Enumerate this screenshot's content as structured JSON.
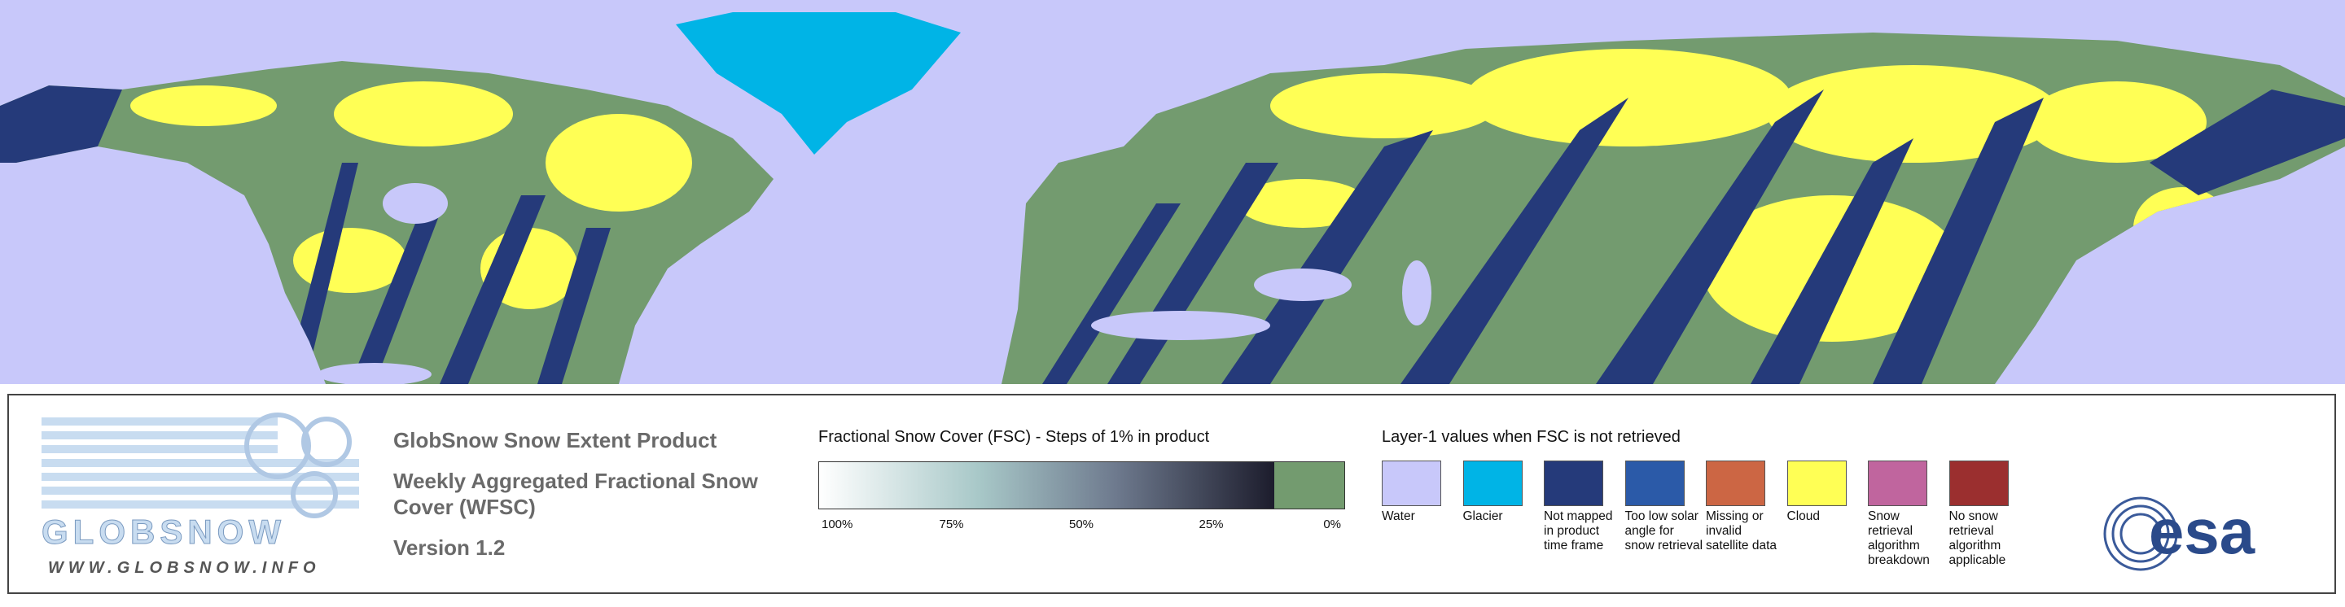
{
  "logo": {
    "name": "GLOBSNOW",
    "url": "WWW.GLOBSNOW.INFO"
  },
  "header": {
    "product": "GlobSnow Snow Extent Product",
    "subtitle_line1": "Weekly Aggregated Fractional Snow",
    "subtitle_line2": "Cover (WFSC)",
    "version": "Version 1.2"
  },
  "fsc_legend": {
    "title": "Fractional Snow Cover (FSC) - Steps of 1% in product",
    "ticks": [
      "100%",
      "75%",
      "50%",
      "25%",
      "0%"
    ]
  },
  "layer1_legend": {
    "title": "Layer-1 values when FSC is not retrieved",
    "items": [
      {
        "label": "Water",
        "color": "#c8c8fa"
      },
      {
        "label": "Glacier",
        "color": "#00b4e6"
      },
      {
        "label": "Not mapped in product time frame",
        "color": "#253a7a"
      },
      {
        "label": "Too low solar angle for snow retrieval",
        "color": "#2b5aa8"
      },
      {
        "label": "Missing or invalid satellite data",
        "color": "#cc6644"
      },
      {
        "label": "Cloud",
        "color": "#ffff55"
      },
      {
        "label": "Snow retrieval algorithm breakdown",
        "color": "#c0659e"
      },
      {
        "label": "No snow retrieval algorithm applicable",
        "color": "#9b2f2f"
      }
    ]
  },
  "esa_logo": "esa"
}
